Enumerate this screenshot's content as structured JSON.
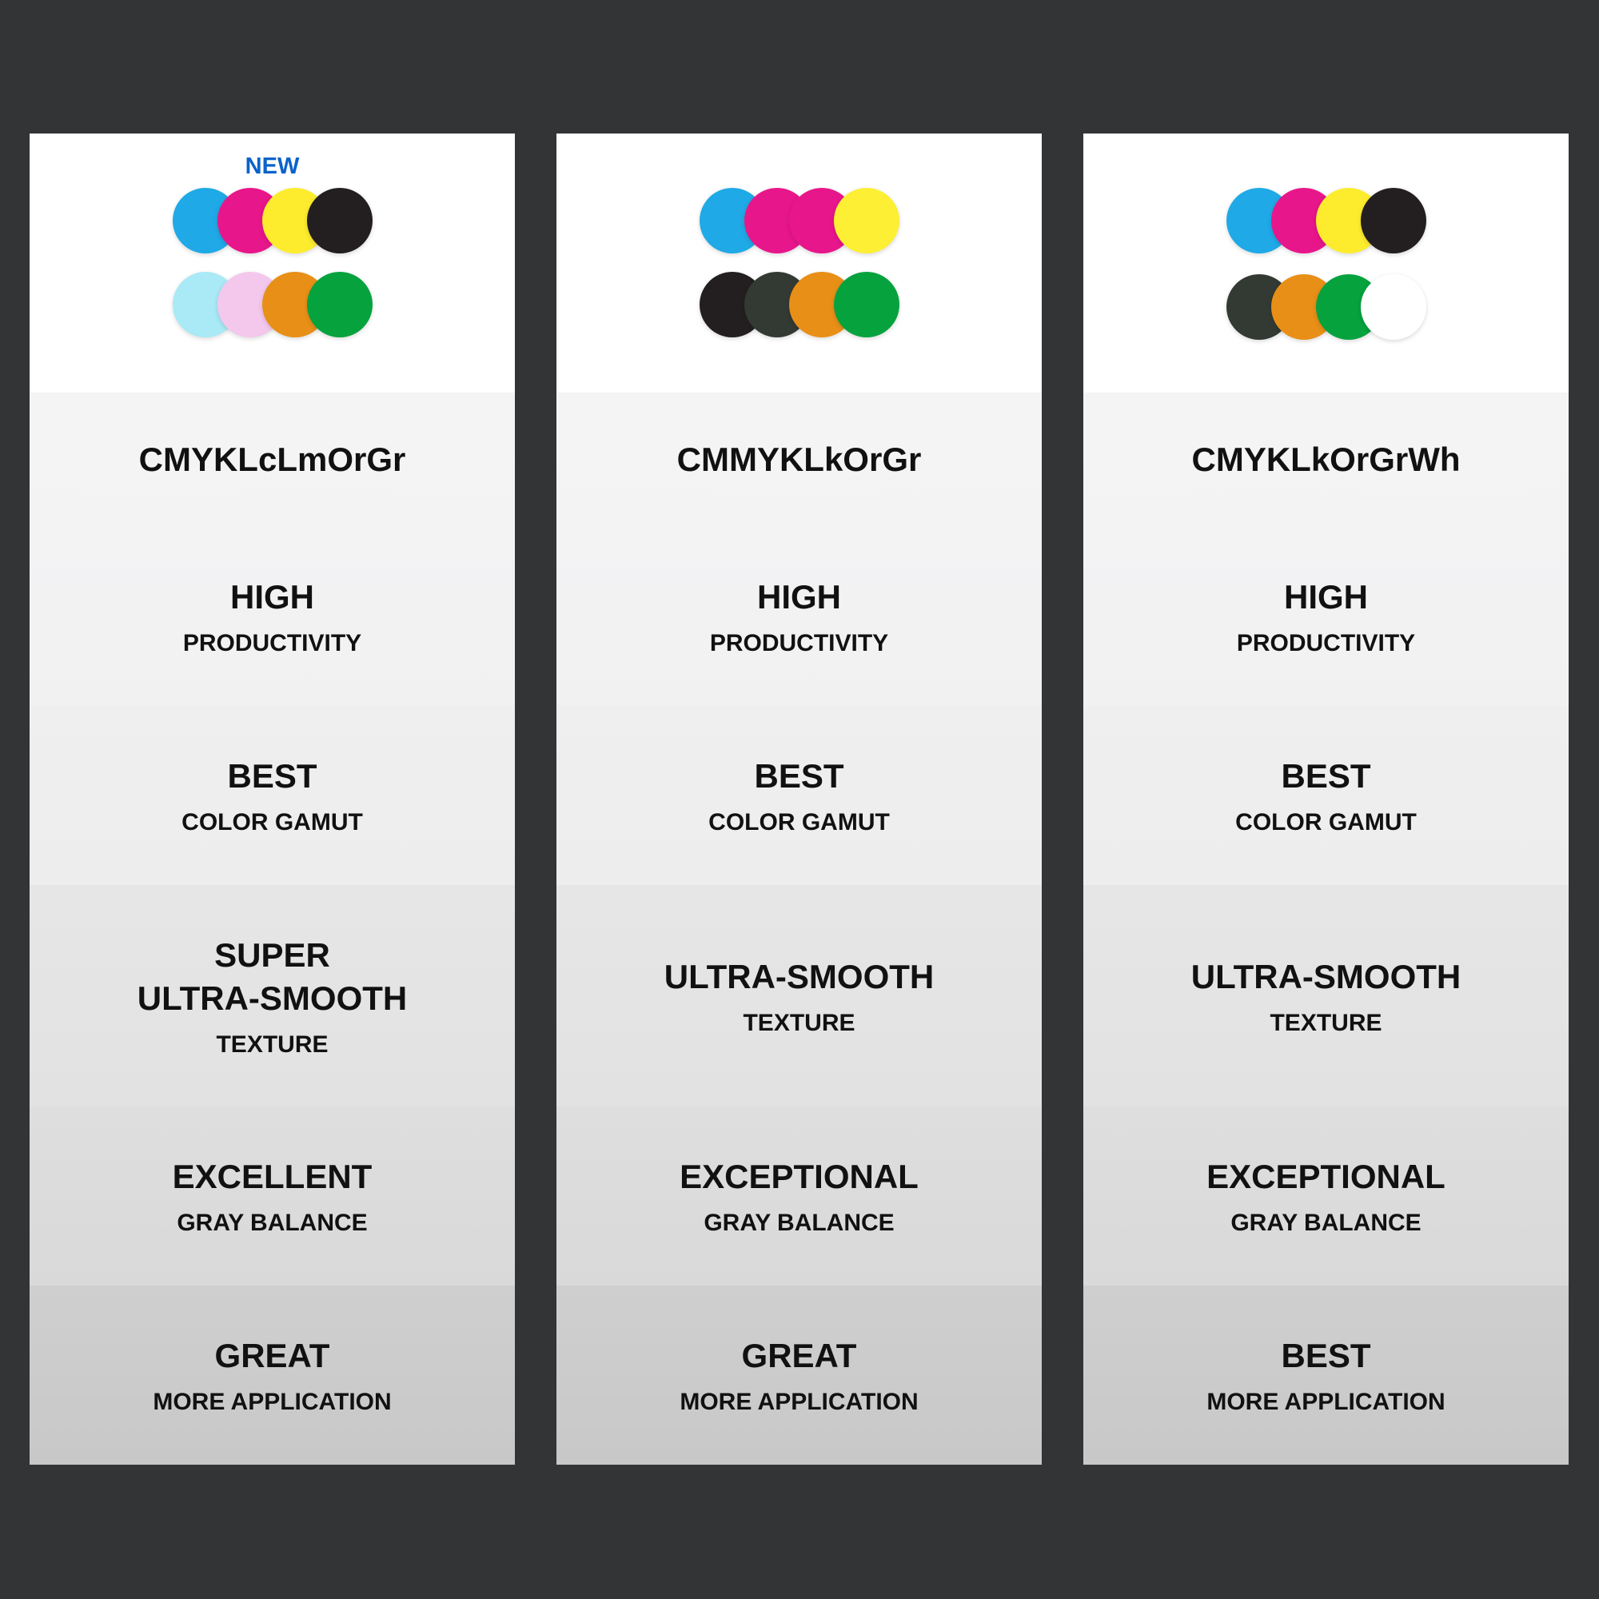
{
  "background": "#333436",
  "columns": [
    {
      "badge": "NEW",
      "title": "CMYKLcLmOrGr",
      "inks_top": [
        "#1fa9e6",
        "#e8168b",
        "#fdec2e",
        "#231f20"
      ],
      "inks_bottom": [
        "#a9eaf6",
        "#f3c8ec",
        "#e88f17",
        "#06a23e"
      ],
      "rows": [
        {
          "main": "HIGH",
          "sub": "PRODUCTIVITY"
        },
        {
          "main": "BEST",
          "sub": "COLOR GAMUT"
        },
        {
          "main": "SUPER",
          "main2": "ULTRA-SMOOTH",
          "sub": "TEXTURE"
        },
        {
          "main": "EXCELLENT",
          "sub": "GRAY BALANCE"
        },
        {
          "main": "GREAT",
          "sub": "MORE APPLICATION"
        }
      ]
    },
    {
      "title": "CMMYKLkOrGr",
      "inks_top": [
        "#1fa9e6",
        "#e8168b",
        "#e8168b",
        "#fdef33"
      ],
      "inks_bottom": [
        "#231f20",
        "#323a33",
        "#e88f17",
        "#06a23e"
      ],
      "rows": [
        {
          "main": "HIGH",
          "sub": "PRODUCTIVITY"
        },
        {
          "main": "BEST",
          "sub": "COLOR GAMUT"
        },
        {
          "main": "ULTRA-SMOOTH",
          "sub": "TEXTURE"
        },
        {
          "main": "EXCEPTIONAL",
          "sub": "GRAY BALANCE"
        },
        {
          "main": "GREAT",
          "sub": "MORE APPLICATION"
        }
      ]
    },
    {
      "title": "CMYKLkOrGrWh",
      "inks_top": [
        "#1fa9e6",
        "#e8168b",
        "#fdec2e",
        "#231f20"
      ],
      "inks_bottom": [
        "#323a33",
        "#e88f17",
        "#06a23e",
        "#ffffff"
      ],
      "rows": [
        {
          "main": "HIGH",
          "sub": "PRODUCTIVITY"
        },
        {
          "main": "BEST",
          "sub": "COLOR GAMUT"
        },
        {
          "main": "ULTRA-SMOOTH",
          "sub": "TEXTURE"
        },
        {
          "main": "EXCEPTIONAL",
          "sub": "GRAY BALANCE"
        },
        {
          "main": "BEST",
          "sub": "MORE APPLICATION"
        }
      ]
    }
  ]
}
